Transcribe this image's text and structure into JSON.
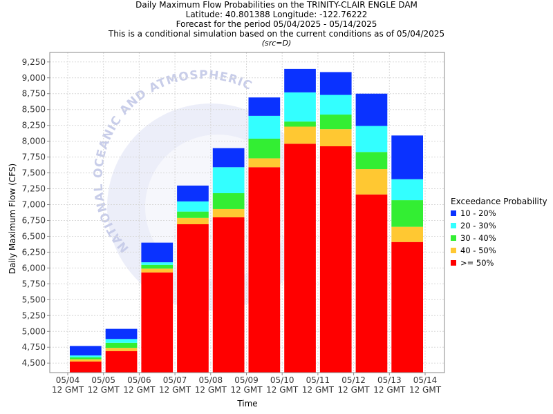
{
  "titles": {
    "line1": "Daily Maximum Flow Probabilities on the TRINITY-CLAIR ENGLE DAM",
    "line2": "Latitude: 40.801388 Longitude: -122.76222",
    "line3": "Forecast for the period 05/04/2025 - 05/14/2025",
    "line4": "This is a conditional simulation based on the current conditions as of 05/04/2025",
    "line5": "(src=D)"
  },
  "watermark": "NATIONAL OCEANIC AND ATMOSPHERIC",
  "colors": {
    "p10_20": "#0a32ff",
    "p20_30": "#33ffff",
    "p30_40": "#33ee33",
    "p40_50": "#ffc832",
    "p50": "#ff0000",
    "grid": "#d8d8d8",
    "watermark": "#dde0f4"
  },
  "chart_data": {
    "type": "bar",
    "stacked": true,
    "title": "Daily Maximum Flow Probabilities on the TRINITY-CLAIR ENGLE DAM",
    "xlabel": "Time",
    "ylabel": "Daily Maximum Flow (CFS)",
    "ylim": [
      4350,
      9400
    ],
    "yticks": [
      "9,250",
      "9,000",
      "8,750",
      "8,500",
      "8,250",
      "8,000",
      "7,750",
      "7,500",
      "7,250",
      "7,000",
      "6,750",
      "6,500",
      "6,250",
      "6,000",
      "5,750",
      "5,500",
      "5,250",
      "5,000",
      "4,750",
      "4,500"
    ],
    "ytick_values": [
      9250,
      9000,
      8750,
      8500,
      8250,
      8000,
      7750,
      7500,
      7250,
      7000,
      6750,
      6500,
      6250,
      6000,
      5750,
      5500,
      5250,
      5000,
      4750,
      4500
    ],
    "xticks": [
      {
        "date": "05/04",
        "time": "12 GMT"
      },
      {
        "date": "05/05",
        "time": "12 GMT"
      },
      {
        "date": "05/06",
        "time": "12 GMT"
      },
      {
        "date": "05/07",
        "time": "12 GMT"
      },
      {
        "date": "05/08",
        "time": "12 GMT"
      },
      {
        "date": "05/09",
        "time": "12 GMT"
      },
      {
        "date": "05/10",
        "time": "12 GMT"
      },
      {
        "date": "05/11",
        "time": "12 GMT"
      },
      {
        "date": "05/12",
        "time": "12 GMT"
      },
      {
        "date": "05/13",
        "time": "12 GMT"
      },
      {
        "date": "05/14",
        "time": "12 GMT"
      }
    ],
    "grid": true,
    "legend_title": "Exceedance Probability",
    "legend_position": "right",
    "series": [
      {
        "name": ">= 50%",
        "color_key": "p50",
        "tops": [
          4525,
          4690,
          5930,
          6690,
          6800,
          7590,
          7960,
          7920,
          7160,
          6410
        ]
      },
      {
        "name": "40 - 50%",
        "color_key": "p40_50",
        "tops": [
          4560,
          4740,
          5990,
          6790,
          6930,
          7730,
          8230,
          8190,
          7560,
          6650
        ]
      },
      {
        "name": "30 - 40%",
        "color_key": "p30_40",
        "tops": [
          4590,
          4820,
          6050,
          6890,
          7180,
          8040,
          8310,
          8420,
          7830,
          7070
        ]
      },
      {
        "name": "20 - 30%",
        "color_key": "p20_30",
        "tops": [
          4620,
          4880,
          6090,
          7050,
          7590,
          8400,
          8770,
          8730,
          8240,
          7400
        ]
      },
      {
        "name": "10 - 20%",
        "color_key": "p10_20",
        "tops": [
          4770,
          5040,
          6400,
          7300,
          7890,
          8690,
          9140,
          9090,
          8750,
          8090
        ]
      }
    ],
    "legend_order": [
      "10 - 20%",
      "20 - 30%",
      "30 - 40%",
      "40 - 50%",
      ">= 50%"
    ]
  }
}
